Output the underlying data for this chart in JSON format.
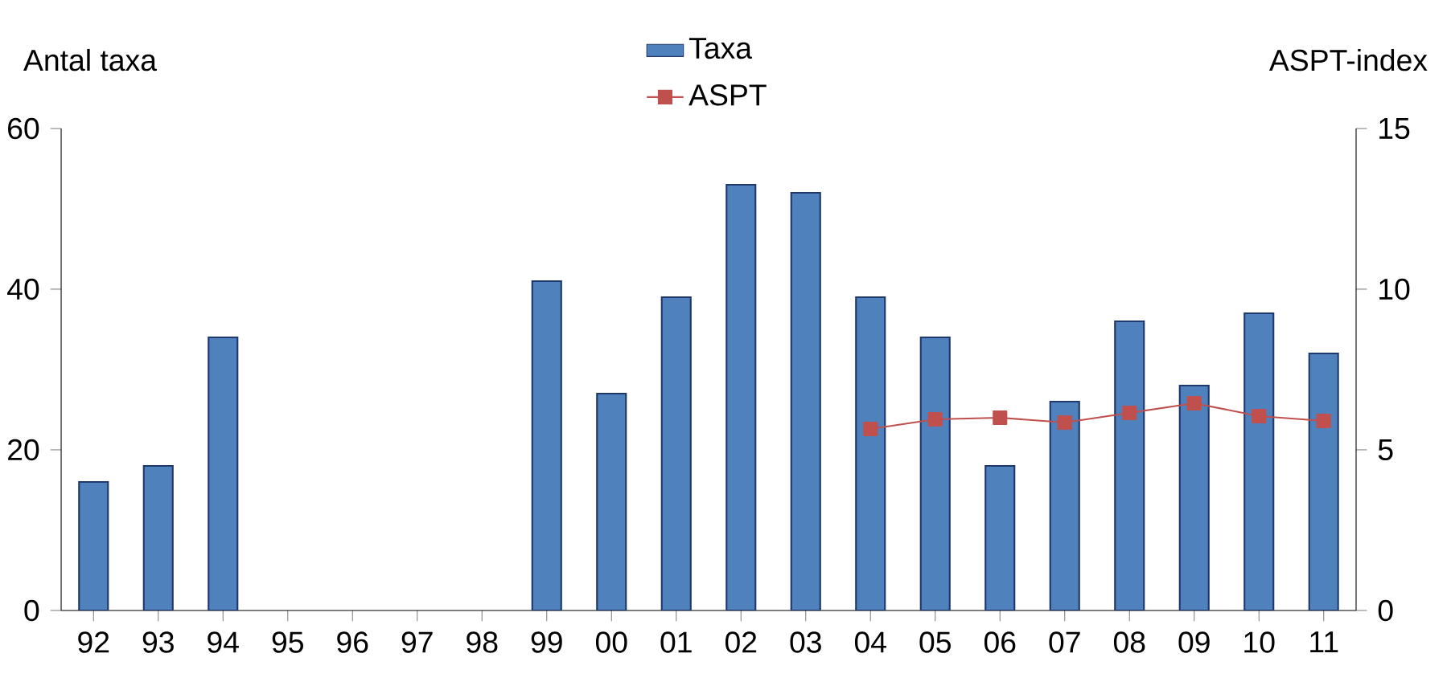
{
  "chart_data": {
    "type": "bar",
    "categories": [
      "92",
      "93",
      "94",
      "95",
      "96",
      "97",
      "98",
      "99",
      "00",
      "01",
      "02",
      "03",
      "04",
      "05",
      "06",
      "07",
      "08",
      "09",
      "10",
      "11"
    ],
    "ylabel": "Antal taxa",
    "y2label": "ASPT-index",
    "ylim": [
      0,
      60
    ],
    "yticks": [
      0,
      20,
      40,
      60
    ],
    "y2lim": [
      0,
      15
    ],
    "y2ticks": [
      0,
      5,
      10,
      15
    ],
    "legend": "top",
    "grid": false,
    "series": [
      {
        "name": "Taxa",
        "color": "#4f81bd",
        "values": [
          16,
          18,
          34,
          null,
          null,
          null,
          null,
          41,
          27,
          39,
          53,
          52,
          39,
          34,
          18,
          26,
          36,
          28,
          37,
          32
        ]
      },
      {
        "name": "ASPT",
        "type": "line",
        "axis": "y2",
        "color": "#c0504d",
        "marker": "square",
        "line_style": "solid",
        "values": [
          null,
          null,
          null,
          null,
          null,
          null,
          null,
          null,
          null,
          null,
          null,
          null,
          5.65,
          5.95,
          6.0,
          5.85,
          6.15,
          6.45,
          6.05,
          5.9
        ]
      }
    ]
  }
}
